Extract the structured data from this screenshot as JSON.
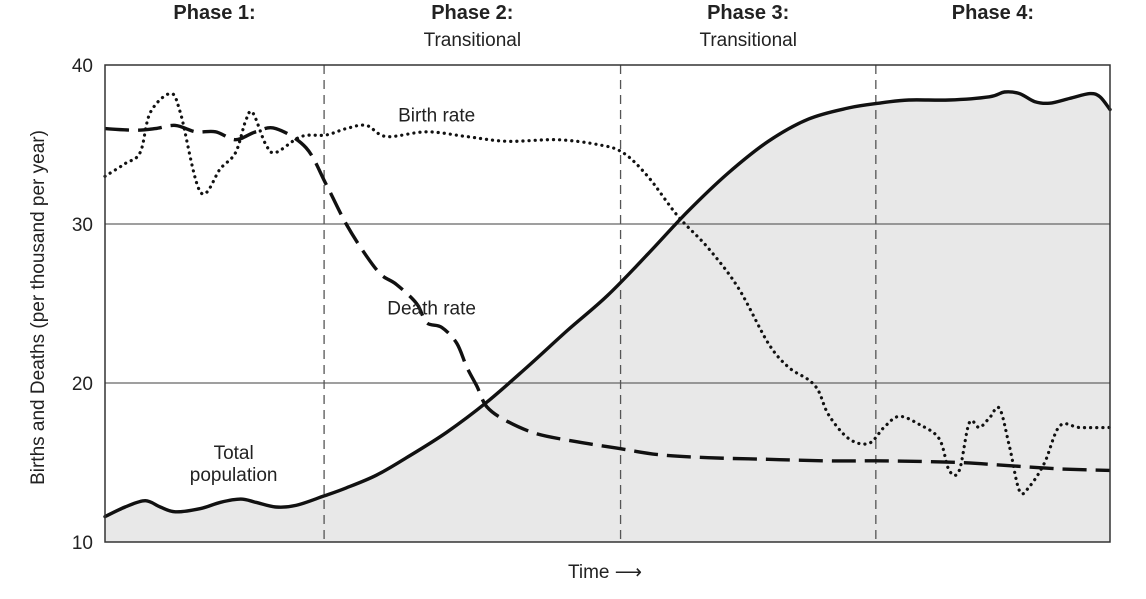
{
  "chart_data": {
    "type": "line",
    "title": "",
    "xlabel": "Time ⟶",
    "ylabel": "Births and Deaths (per thousand per year)",
    "ylim": [
      10,
      40
    ],
    "yticks": [
      10,
      20,
      30,
      40
    ],
    "grid": "horizontal lines at 20 and 30",
    "phases": [
      {
        "title": "Phase 1:",
        "subtitle": ""
      },
      {
        "title": "Phase 2:",
        "subtitle": "Transitional"
      },
      {
        "title": "Phase 3:",
        "subtitle": "Transitional"
      },
      {
        "title": "Phase 4:",
        "subtitle": ""
      }
    ],
    "annotations": {
      "birth_rate": "Birth rate",
      "death_rate": "Death rate",
      "total_population_line1": "Total",
      "total_population_line2": "population"
    },
    "x_range": [
      0,
      100
    ],
    "phase_boundaries": [
      21.8,
      51.3,
      76.7
    ],
    "series": [
      {
        "name": "Birth rate",
        "style": "dotted",
        "points": [
          [
            0,
            33
          ],
          [
            2,
            33.8
          ],
          [
            3.5,
            34.5
          ],
          [
            4.5,
            37
          ],
          [
            6.5,
            38.2
          ],
          [
            7.5,
            37
          ],
          [
            9.5,
            32
          ],
          [
            11.5,
            33.5
          ],
          [
            13,
            34.5
          ],
          [
            14,
            36.5
          ],
          [
            14.7,
            37
          ],
          [
            16,
            35
          ],
          [
            17,
            34.5
          ],
          [
            19.5,
            35.5
          ],
          [
            22,
            35.6
          ],
          [
            24,
            36
          ],
          [
            26,
            36.2
          ],
          [
            28,
            35.5
          ],
          [
            32,
            35.8
          ],
          [
            36,
            35.5
          ],
          [
            40,
            35.2
          ],
          [
            45,
            35.3
          ],
          [
            49,
            35
          ],
          [
            51.5,
            34.5
          ],
          [
            54,
            33
          ],
          [
            57,
            30.5
          ],
          [
            60,
            28.5
          ],
          [
            63,
            26
          ],
          [
            66,
            22.5
          ],
          [
            68,
            21
          ],
          [
            70,
            20.2
          ],
          [
            71,
            19.5
          ],
          [
            72,
            18
          ],
          [
            74,
            16.5
          ],
          [
            76,
            16.2
          ],
          [
            77.5,
            17.2
          ],
          [
            79,
            17.9
          ],
          [
            81,
            17.4
          ],
          [
            83,
            16.5
          ],
          [
            84,
            14.5
          ],
          [
            85,
            14.5
          ],
          [
            86,
            17.5
          ],
          [
            87,
            17.2
          ],
          [
            88,
            17.8
          ],
          [
            89,
            18.4
          ],
          [
            90,
            16
          ],
          [
            91,
            13.2
          ],
          [
            92,
            13.5
          ],
          [
            93.5,
            15
          ],
          [
            95,
            17.3
          ],
          [
            97,
            17.2
          ],
          [
            100,
            17.2
          ]
        ]
      },
      {
        "name": "Death rate",
        "style": "dashed",
        "points": [
          [
            0,
            36
          ],
          [
            3,
            35.9
          ],
          [
            5,
            36
          ],
          [
            7,
            36.2
          ],
          [
            9,
            35.8
          ],
          [
            11,
            35.8
          ],
          [
            13,
            35.3
          ],
          [
            15,
            35.8
          ],
          [
            17,
            36
          ],
          [
            20,
            34.8
          ],
          [
            22,
            32.5
          ],
          [
            24,
            30
          ],
          [
            26,
            28
          ],
          [
            27.5,
            26.8
          ],
          [
            29,
            26.2
          ],
          [
            31,
            25
          ],
          [
            32,
            23.8
          ],
          [
            33.5,
            23.5
          ],
          [
            35,
            22.5
          ],
          [
            36,
            21
          ],
          [
            37,
            19.8
          ],
          [
            38,
            18.5
          ],
          [
            40,
            17.6
          ],
          [
            43,
            16.8
          ],
          [
            47,
            16.3
          ],
          [
            51,
            15.9
          ],
          [
            55,
            15.5
          ],
          [
            60,
            15.3
          ],
          [
            66,
            15.2
          ],
          [
            72,
            15.1
          ],
          [
            78,
            15.1
          ],
          [
            85,
            15
          ],
          [
            90,
            14.8
          ],
          [
            95,
            14.6
          ],
          [
            100,
            14.5
          ]
        ]
      },
      {
        "name": "Total population",
        "style": "solid",
        "fill": "#e8e8e8",
        "points": [
          [
            0,
            11.6
          ],
          [
            2,
            12.2
          ],
          [
            4,
            12.6
          ],
          [
            5.5,
            12.2
          ],
          [
            7,
            11.9
          ],
          [
            9.5,
            12.1
          ],
          [
            11.5,
            12.5
          ],
          [
            13.5,
            12.7
          ],
          [
            15,
            12.5
          ],
          [
            17,
            12.2
          ],
          [
            19,
            12.3
          ],
          [
            21.8,
            12.9
          ],
          [
            24,
            13.4
          ],
          [
            27,
            14.2
          ],
          [
            30,
            15.3
          ],
          [
            34,
            16.9
          ],
          [
            38,
            18.8
          ],
          [
            42,
            21
          ],
          [
            46,
            23.3
          ],
          [
            50,
            25.5
          ],
          [
            54,
            28.1
          ],
          [
            58,
            30.8
          ],
          [
            62,
            33.2
          ],
          [
            66,
            35.2
          ],
          [
            70,
            36.6
          ],
          [
            74,
            37.3
          ],
          [
            77,
            37.6
          ],
          [
            80,
            37.8
          ],
          [
            84,
            37.8
          ],
          [
            88,
            38
          ],
          [
            89.5,
            38.3
          ],
          [
            91,
            38.2
          ],
          [
            92.5,
            37.7
          ],
          [
            94,
            37.6
          ],
          [
            96,
            37.9
          ],
          [
            98,
            38.2
          ],
          [
            99,
            38
          ],
          [
            100,
            37.2
          ]
        ]
      }
    ],
    "colors": {
      "line": "#111111",
      "fill": "#e8e8e8",
      "grid": "#666666",
      "divider": "#555555"
    }
  }
}
